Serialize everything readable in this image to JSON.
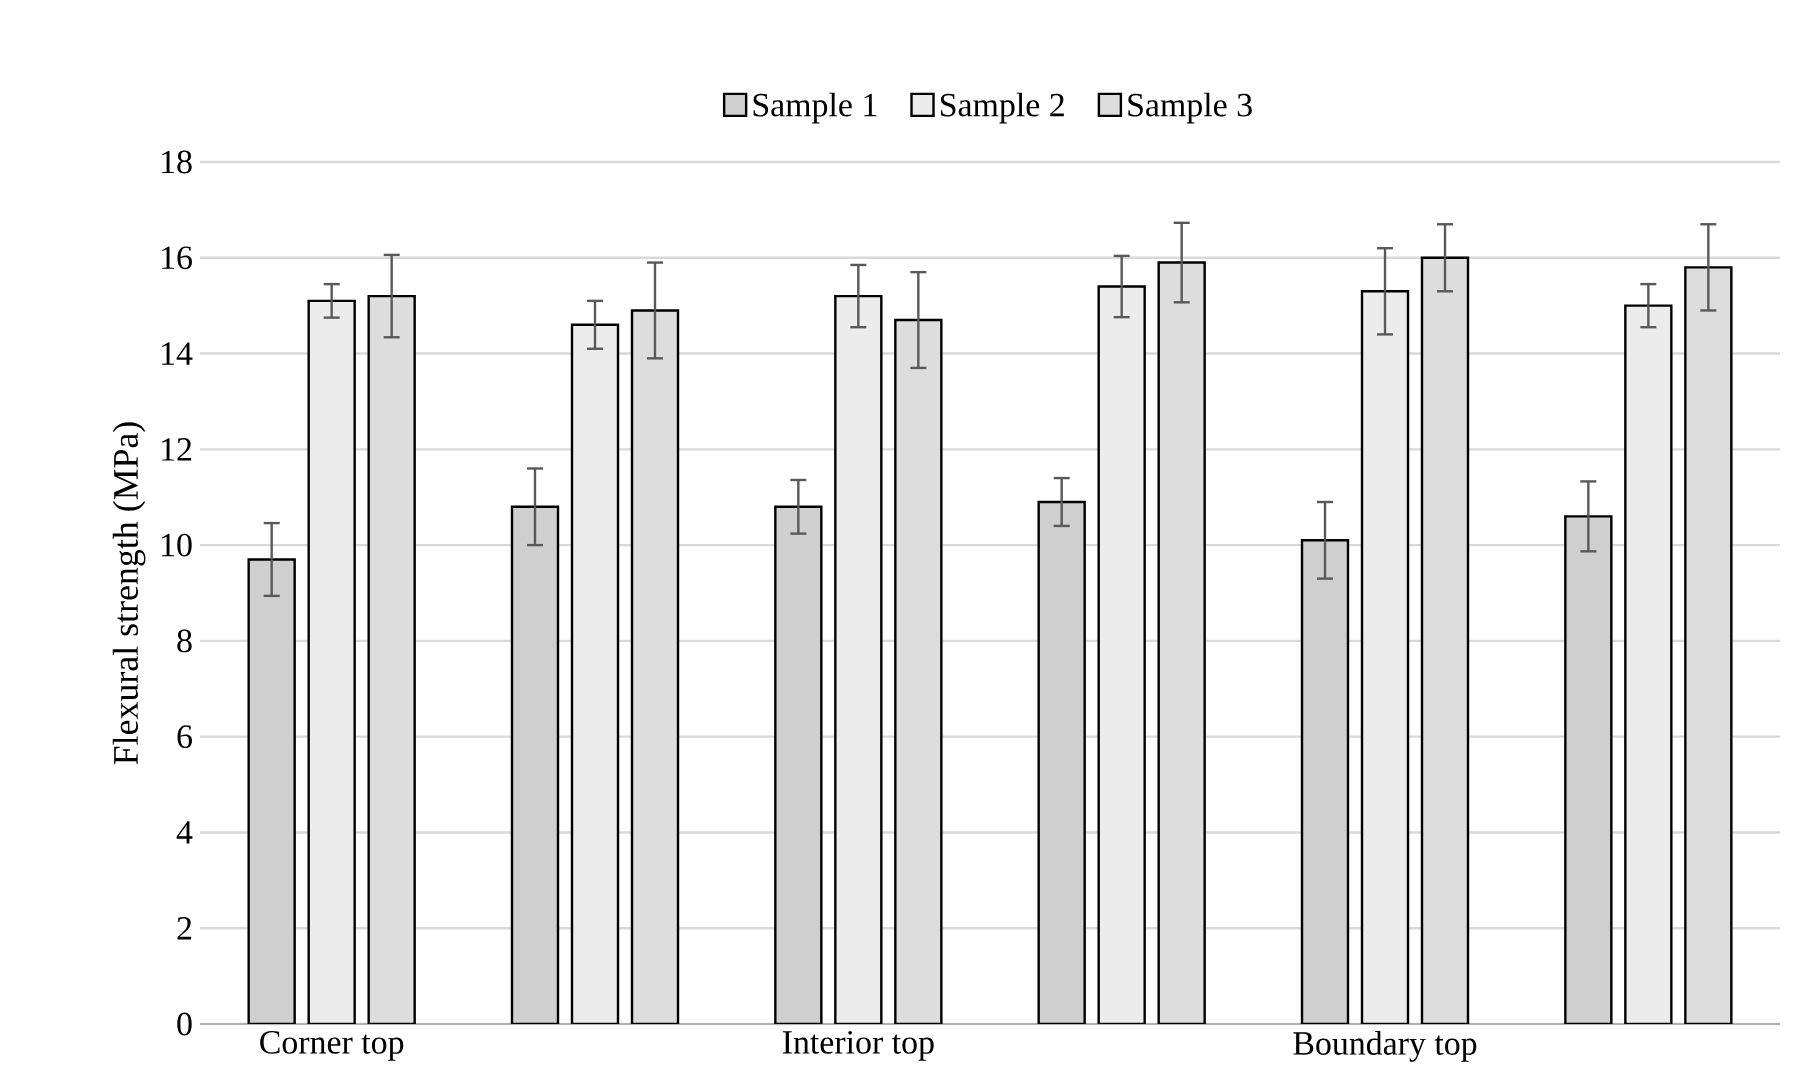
{
  "chart_data": {
    "type": "bar",
    "ylabel": "Flexural strength (MPa)",
    "categories": [
      "Corner top",
      null,
      "Interior top",
      null,
      "Boundary top",
      null
    ],
    "series": [
      {
        "name": "Sample 1",
        "color": "#d0cfd0",
        "values": [
          9.7,
          10.8,
          10.8,
          10.9,
          10.1,
          10.6
        ],
        "errors": [
          0.76,
          0.8,
          0.56,
          0.5,
          0.8,
          0.73
        ]
      },
      {
        "name": "Sample 2",
        "color": "#ececec",
        "values": [
          15.1,
          14.6,
          15.2,
          15.4,
          15.3,
          15.0
        ],
        "errors": [
          0.35,
          0.5,
          0.65,
          0.64,
          0.9,
          0.45
        ]
      },
      {
        "name": "Sample 3",
        "color": "#dddddd",
        "values": [
          15.2,
          14.9,
          14.7,
          15.9,
          16.0,
          15.8
        ],
        "errors": [
          0.86,
          1.0,
          1.0,
          0.83,
          0.7,
          0.9
        ]
      }
    ],
    "ylim": [
      0,
      18
    ],
    "yticks": [
      0,
      2,
      4,
      6,
      8,
      10,
      12,
      14,
      16,
      18
    ],
    "grid": "y",
    "legend": "top"
  }
}
